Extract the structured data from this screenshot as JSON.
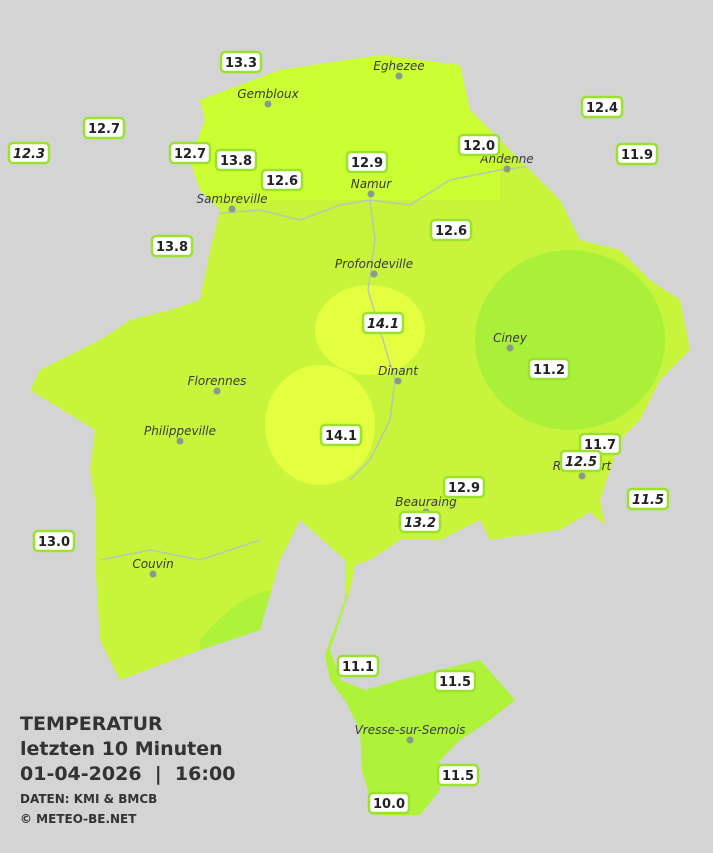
{
  "title": "TEMPERATUR",
  "subtitle": "letzten 10 Minuten",
  "datetime": "01-04-2026  |  16:00",
  "credits": [
    "DATEN: KMI & BMCB",
    "© METEO-BE.NET"
  ],
  "places": [
    "Eghezee",
    "Gembloux",
    "Andenne",
    "Namur",
    "Sambreville",
    "Profondeville",
    "Ciney",
    "Dinant",
    "Florennes",
    "Philippeville",
    "Rochefort",
    "Beauraing",
    "Couvin",
    "Vresse-sur-Semois"
  ],
  "stations": [
    "13.3",
    "12.7",
    "12.3",
    "12.7",
    "13.8",
    "12.6",
    "12.9",
    "12.0",
    "12.4",
    "11.9",
    "12.6",
    "13.8",
    "14.1",
    "11.2",
    "14.1",
    "11.7",
    "12.5",
    "11.5",
    "12.9",
    "13.2",
    "13.0",
    "11.1",
    "11.5",
    "11.5",
    "10.0"
  ]
}
